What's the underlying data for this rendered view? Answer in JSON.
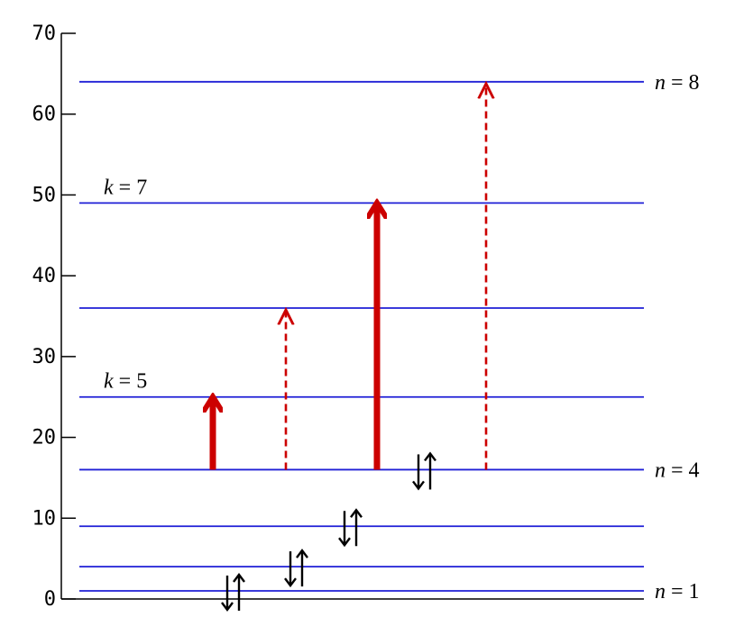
{
  "axis": {
    "ylim": [
      0,
      70
    ],
    "ticks": [
      0,
      10,
      20,
      30,
      40,
      50,
      60,
      70
    ],
    "tick_labels": [
      "0",
      "10",
      "20",
      "30",
      "40",
      "50",
      "60",
      "70"
    ]
  },
  "levels": [
    1,
    4,
    9,
    16,
    25,
    36,
    49,
    64
  ],
  "level_labels": [
    {
      "var": "n",
      "rest": " = 8",
      "value": 64,
      "side": "right"
    },
    {
      "var": "k",
      "rest": " = 7",
      "value": 49,
      "side": "left"
    },
    {
      "var": "k",
      "rest": " = 5",
      "value": 25,
      "side": "left"
    },
    {
      "var": "n",
      "rest": " = 4",
      "value": 16,
      "side": "right"
    },
    {
      "var": "n",
      "rest": " = 1",
      "value": 1,
      "side": "right"
    }
  ],
  "transitions": [
    {
      "from": 16,
      "to": 25,
      "style": "solid"
    },
    {
      "from": 16,
      "to": 36,
      "style": "dashed"
    },
    {
      "from": 16,
      "to": 49,
      "style": "solid"
    },
    {
      "from": 16,
      "to": 64,
      "style": "dashed"
    }
  ],
  "spin_pairs": [
    1,
    4,
    9,
    16
  ],
  "colors": {
    "level_line": "#1f1fd6",
    "transition": "#cc0000",
    "axis": "#000000",
    "spin": "#000000"
  }
}
